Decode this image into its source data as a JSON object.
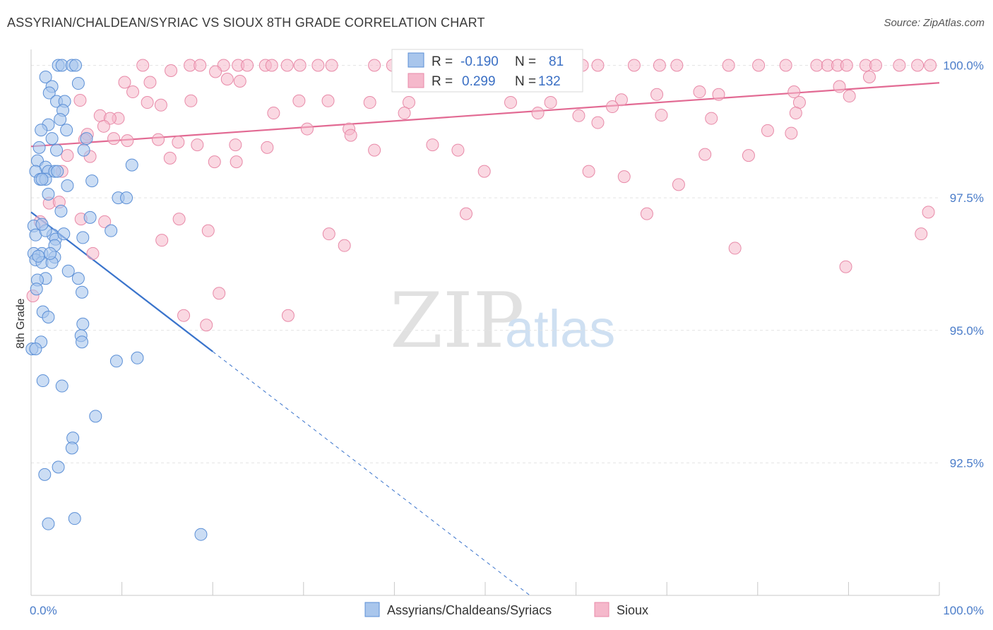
{
  "title": "ASSYRIAN/CHALDEAN/SYRIAC VS SIOUX 8TH GRADE CORRELATION CHART",
  "source": "Source: ZipAtlas.com",
  "watermark": {
    "zip": "ZIP",
    "atlas": "atlas"
  },
  "chart_data": {
    "type": "scatter",
    "ylabel": "8th Grade",
    "xlim": [
      0,
      100
    ],
    "ylim": [
      90.0,
      100.3
    ],
    "x_tick_labels": [
      {
        "value": 0,
        "label": "0.0%"
      },
      {
        "value": 100,
        "label": "100.0%"
      }
    ],
    "y_ticks": [
      {
        "value": 100.0,
        "label": "100.0%"
      },
      {
        "value": 97.5,
        "label": "97.5%"
      },
      {
        "value": 95.0,
        "label": "95.0%"
      },
      {
        "value": 92.5,
        "label": "92.5%"
      }
    ],
    "grid": true,
    "colors": {
      "assyrian_fill": "#a9c6ec",
      "assyrian_stroke": "#5b8fd6",
      "assyrian_line": "#3a74cc",
      "sioux_fill": "#f5b8cb",
      "sioux_stroke": "#e88aa8",
      "sioux_line": "#e26a93"
    },
    "legend": {
      "rows": [
        {
          "r_label": "R =",
          "r_value": "-0.190",
          "n_label": "N =",
          "n_value": "81"
        },
        {
          "r_label": "R =",
          "r_value": "0.299",
          "n_label": "N =",
          "n_value": "132"
        }
      ]
    },
    "bottom_legend": [
      "Assyrians/Chaldeans/Syriacs",
      "Sioux"
    ],
    "series": [
      {
        "name": "Assyrians/Chaldeans/Syriacs",
        "trend": {
          "x0": 0,
          "y0": 97.23,
          "x1": 20,
          "y1": 94.6,
          "dash_to_x": 55,
          "dash_to_y": 89.99
        },
        "points": [
          [
            3.0,
            100.0
          ],
          [
            3.4,
            100.0
          ],
          [
            4.5,
            100.0
          ],
          [
            4.9,
            100.0
          ],
          [
            1.6,
            99.78
          ],
          [
            2.3,
            99.6
          ],
          [
            5.2,
            99.66
          ],
          [
            2.0,
            99.48
          ],
          [
            2.8,
            99.32
          ],
          [
            3.7,
            99.32
          ],
          [
            3.5,
            99.15
          ],
          [
            3.2,
            98.98
          ],
          [
            1.9,
            98.88
          ],
          [
            1.1,
            98.78
          ],
          [
            3.9,
            98.78
          ],
          [
            2.3,
            98.62
          ],
          [
            6.1,
            98.62
          ],
          [
            0.9,
            98.45
          ],
          [
            2.8,
            98.4
          ],
          [
            5.8,
            98.4
          ],
          [
            0.7,
            98.2
          ],
          [
            1.6,
            98.08
          ],
          [
            11.1,
            98.12
          ],
          [
            0.5,
            98.0
          ],
          [
            1.9,
            98.0
          ],
          [
            2.6,
            98.0
          ],
          [
            1.0,
            97.85
          ],
          [
            1.6,
            97.85
          ],
          [
            1.2,
            97.85
          ],
          [
            6.7,
            97.82
          ],
          [
            4.0,
            97.73
          ],
          [
            1.9,
            97.57
          ],
          [
            9.6,
            97.5
          ],
          [
            10.5,
            97.5
          ],
          [
            3.3,
            97.25
          ],
          [
            6.5,
            97.13
          ],
          [
            0.3,
            96.97
          ],
          [
            0.5,
            96.8
          ],
          [
            2.4,
            96.8
          ],
          [
            8.8,
            96.88
          ],
          [
            1.6,
            96.88
          ],
          [
            2.7,
            96.72
          ],
          [
            5.7,
            96.75
          ],
          [
            2.6,
            96.6
          ],
          [
            1.2,
            96.45
          ],
          [
            2.6,
            96.38
          ],
          [
            0.3,
            96.45
          ],
          [
            0.5,
            96.33
          ],
          [
            1.2,
            96.28
          ],
          [
            2.3,
            96.28
          ],
          [
            4.1,
            96.12
          ],
          [
            5.2,
            95.98
          ],
          [
            1.6,
            95.98
          ],
          [
            0.7,
            95.95
          ],
          [
            0.6,
            95.78
          ],
          [
            5.6,
            95.72
          ],
          [
            1.3,
            95.35
          ],
          [
            1.9,
            95.25
          ],
          [
            5.7,
            95.12
          ],
          [
            5.5,
            94.9
          ],
          [
            5.6,
            94.78
          ],
          [
            1.1,
            94.78
          ],
          [
            0.1,
            94.65
          ],
          [
            0.5,
            94.65
          ],
          [
            11.7,
            94.48
          ],
          [
            9.4,
            94.42
          ],
          [
            1.3,
            94.05
          ],
          [
            3.4,
            93.95
          ],
          [
            7.1,
            93.38
          ],
          [
            4.6,
            92.97
          ],
          [
            4.5,
            92.78
          ],
          [
            3.0,
            92.42
          ],
          [
            1.5,
            92.28
          ],
          [
            1.9,
            91.35
          ],
          [
            4.8,
            91.45
          ],
          [
            18.7,
            91.15
          ],
          [
            1.2,
            97.0
          ],
          [
            0.8,
            96.4
          ],
          [
            2.1,
            96.45
          ],
          [
            3.6,
            96.82
          ],
          [
            2.9,
            98.0
          ]
        ]
      },
      {
        "name": "Sioux",
        "trend": {
          "x0": 0,
          "y0": 98.47,
          "x1": 100,
          "y1": 99.67
        },
        "points": [
          [
            12.3,
            100.0
          ],
          [
            17.5,
            100.0
          ],
          [
            18.6,
            100.0
          ],
          [
            21.2,
            100.0
          ],
          [
            22.8,
            100.0
          ],
          [
            23.8,
            100.0
          ],
          [
            25.8,
            100.0
          ],
          [
            26.5,
            100.0
          ],
          [
            28.2,
            100.0
          ],
          [
            29.6,
            100.0
          ],
          [
            31.6,
            100.0
          ],
          [
            33.1,
            100.0
          ],
          [
            37.8,
            100.0
          ],
          [
            39.8,
            100.0
          ],
          [
            42.4,
            100.0
          ],
          [
            45.1,
            100.0
          ],
          [
            47.3,
            100.0
          ],
          [
            49.4,
            100.0
          ],
          [
            51.3,
            100.0
          ],
          [
            55.2,
            100.0
          ],
          [
            58.5,
            100.0
          ],
          [
            60.7,
            100.0
          ],
          [
            62.4,
            100.0
          ],
          [
            66.4,
            100.0
          ],
          [
            69.2,
            100.0
          ],
          [
            71.1,
            100.0
          ],
          [
            76.8,
            100.0
          ],
          [
            80.1,
            100.0
          ],
          [
            83.1,
            100.0
          ],
          [
            86.5,
            100.0
          ],
          [
            87.7,
            100.0
          ],
          [
            88.8,
            100.0
          ],
          [
            89.8,
            100.0
          ],
          [
            91.9,
            100.0
          ],
          [
            93.0,
            100.0
          ],
          [
            95.6,
            100.0
          ],
          [
            97.6,
            100.0
          ],
          [
            99.0,
            100.0
          ],
          [
            52.9,
            100.0
          ],
          [
            58.7,
            100.0
          ],
          [
            46.0,
            100.0
          ],
          [
            15.4,
            99.9
          ],
          [
            20.3,
            99.88
          ],
          [
            21.6,
            99.74
          ],
          [
            23.0,
            99.7
          ],
          [
            10.3,
            99.68
          ],
          [
            13.1,
            99.68
          ],
          [
            11.2,
            99.5
          ],
          [
            5.4,
            99.34
          ],
          [
            12.8,
            99.3
          ],
          [
            14.3,
            99.25
          ],
          [
            17.6,
            99.33
          ],
          [
            29.5,
            99.33
          ],
          [
            32.7,
            99.33
          ],
          [
            37.3,
            99.3
          ],
          [
            41.6,
            99.3
          ],
          [
            52.8,
            99.3
          ],
          [
            57.2,
            99.3
          ],
          [
            65.0,
            99.35
          ],
          [
            68.9,
            99.45
          ],
          [
            73.6,
            99.5
          ],
          [
            75.7,
            99.45
          ],
          [
            84.0,
            99.5
          ],
          [
            84.6,
            99.3
          ],
          [
            89.0,
            99.6
          ],
          [
            90.1,
            99.42
          ],
          [
            92.3,
            99.78
          ],
          [
            9.6,
            99.0
          ],
          [
            7.6,
            99.05
          ],
          [
            8.7,
            99.0
          ],
          [
            26.7,
            99.1
          ],
          [
            41.1,
            99.1
          ],
          [
            55.8,
            99.1
          ],
          [
            60.3,
            99.05
          ],
          [
            62.4,
            98.92
          ],
          [
            64.0,
            99.22
          ],
          [
            69.4,
            99.06
          ],
          [
            74.9,
            99.0
          ],
          [
            84.2,
            99.1
          ],
          [
            8.0,
            98.85
          ],
          [
            6.2,
            98.7
          ],
          [
            9.1,
            98.62
          ],
          [
            10.6,
            98.58
          ],
          [
            14.0,
            98.6
          ],
          [
            16.2,
            98.55
          ],
          [
            18.3,
            98.5
          ],
          [
            22.5,
            98.5
          ],
          [
            30.4,
            98.8
          ],
          [
            35.0,
            98.8
          ],
          [
            44.2,
            98.5
          ],
          [
            35.2,
            98.68
          ],
          [
            74.2,
            98.32
          ],
          [
            83.7,
            98.72
          ],
          [
            81.1,
            98.77
          ],
          [
            4.0,
            98.3
          ],
          [
            6.5,
            98.28
          ],
          [
            3.4,
            98.0
          ],
          [
            5.9,
            98.6
          ],
          [
            15.3,
            98.25
          ],
          [
            22.6,
            98.18
          ],
          [
            20.2,
            98.18
          ],
          [
            26.0,
            98.45
          ],
          [
            37.8,
            98.4
          ],
          [
            47.0,
            98.4
          ],
          [
            49.9,
            98.0
          ],
          [
            61.4,
            98.0
          ],
          [
            65.3,
            97.9
          ],
          [
            71.3,
            97.75
          ],
          [
            79.0,
            98.3
          ],
          [
            2.0,
            97.4
          ],
          [
            3.1,
            97.42
          ],
          [
            1.0,
            97.05
          ],
          [
            5.5,
            97.1
          ],
          [
            8.1,
            97.05
          ],
          [
            16.3,
            97.1
          ],
          [
            14.4,
            96.7
          ],
          [
            19.5,
            96.88
          ],
          [
            32.8,
            96.82
          ],
          [
            34.5,
            96.6
          ],
          [
            47.9,
            97.2
          ],
          [
            67.8,
            97.2
          ],
          [
            77.5,
            96.55
          ],
          [
            89.7,
            96.2
          ],
          [
            98.0,
            96.82
          ],
          [
            98.8,
            97.23
          ],
          [
            6.8,
            96.45
          ],
          [
            20.7,
            95.7
          ],
          [
            16.8,
            95.28
          ],
          [
            19.3,
            95.1
          ],
          [
            28.3,
            95.28
          ],
          [
            0.2,
            95.65
          ]
        ]
      }
    ]
  }
}
